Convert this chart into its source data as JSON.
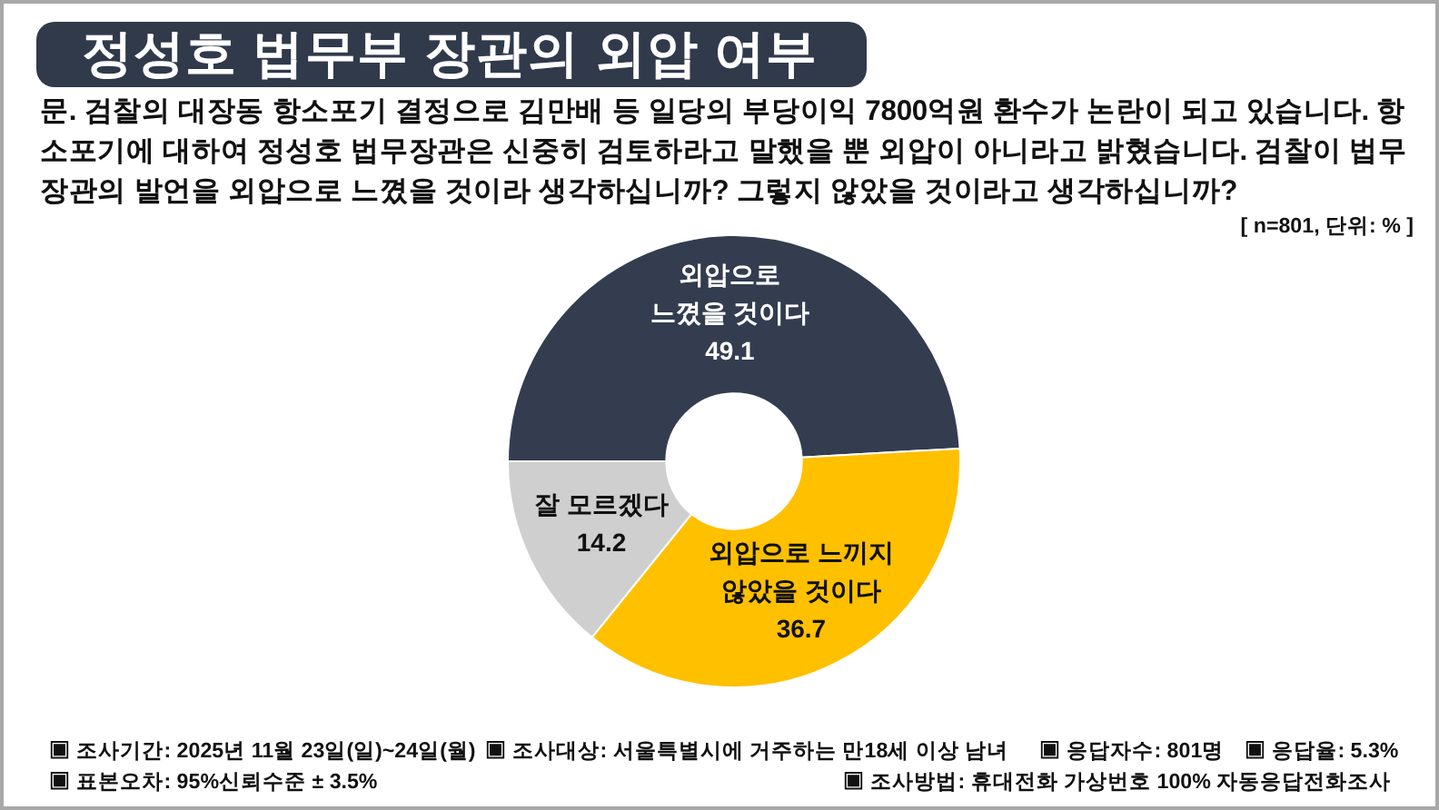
{
  "chart_data": {
    "type": "donut",
    "title": "정성호 법무부 장관의 외압 여부",
    "subtitle": "문. 검찰의 대장동 항소포기 결정으로 김만배 등 일당의 부당이익 7800억원 환수가 논란이 되고 있습니다. 항소포기에 대하여 정성호 법무장관은 신중히 검토하라고 말했을 뿐 외압이 아니라고 밝혔습니다. 검찰이 법무장관의 발언을 외압으로 느꼈을 것이라 생각하십니까? 그렇지 않았을 것이라고 생각하십니까?",
    "categories": [
      "외압으로 느꼈을 것이다",
      "외압으로 느끼지 않았을 것이다",
      "잘 모르겠다"
    ],
    "values": [
      49.1,
      36.7,
      14.2
    ],
    "colors": [
      "#333d4f",
      "#ffc000",
      "#d0cfd0"
    ],
    "data_labels": true,
    "annotations": [
      "[ n=801, 단위: % ]",
      "▣ 조사기간: 2025년 11월 23일(일)~24일(월)",
      "▣ 조사대상: 서울특별시에 거주하는 만18세 이상 남녀",
      "▣ 응답자수: 801명",
      "▣ 응답율: 5.3%",
      "▣ 표본오차: 95%신뢰수준 ± 3.5%",
      "▣ 조사방법: 휴대전화 가상번호 100% 자동응답전화조사"
    ]
  }
}
